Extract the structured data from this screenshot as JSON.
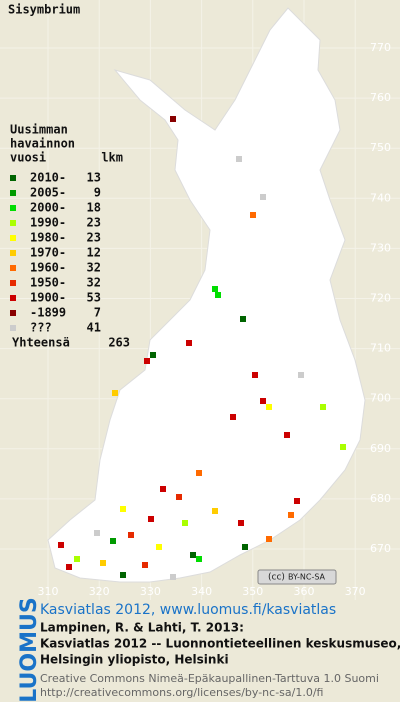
{
  "title": "Sisymbrium",
  "legend": {
    "header": [
      "Uusimman",
      "havainnon"
    ],
    "col_year": "vuosi",
    "col_count": "lkm",
    "rows": [
      {
        "label": "2010-",
        "count": 13,
        "color": "#006400"
      },
      {
        "label": "2005-",
        "count": 9,
        "color": "#009a00"
      },
      {
        "label": "2000-",
        "count": 18,
        "color": "#00dd00"
      },
      {
        "label": "1990-",
        "count": 23,
        "color": "#aaff00"
      },
      {
        "label": "1980-",
        "count": 23,
        "color": "#ffff00"
      },
      {
        "label": "1970-",
        "count": 12,
        "color": "#ffcc00"
      },
      {
        "label": "1960-",
        "count": 32,
        "color": "#ff6a00"
      },
      {
        "label": "1950-",
        "count": 32,
        "color": "#e62a00"
      },
      {
        "label": "1900-",
        "count": 53,
        "color": "#cc0000"
      },
      {
        "label": "-1899",
        "count": 7,
        "color": "#880000"
      },
      {
        "label": "???",
        "count": 41,
        "color": "#cccccc"
      }
    ],
    "total_label": "Yhteensä",
    "total": 263
  },
  "map": {
    "yticks": [
      770,
      760,
      750,
      740,
      730,
      720,
      710,
      700,
      690,
      680,
      670
    ],
    "xticks": [
      310,
      320,
      330,
      340,
      350,
      360,
      370
    ],
    "license_badge": "BY-NC-SA"
  },
  "footer": {
    "brand": "LUOMUS",
    "link": "Kasviatlas 2012, www.luomus.fi/kasviatlas",
    "citation": [
      "Lampinen, R. & Lahti, T. 2013:",
      "Kasviatlas 2012 -- Luonnontieteellinen keskusmuseo,",
      "Helsingin yliopisto, Helsinki"
    ],
    "license": [
      "Creative Commons Nimeä-Epäkaupallinen-Tarttuva 1.0 Suomi",
      "http://creativecommons.org/licenses/by-nc-sa/1.0/fi"
    ]
  }
}
